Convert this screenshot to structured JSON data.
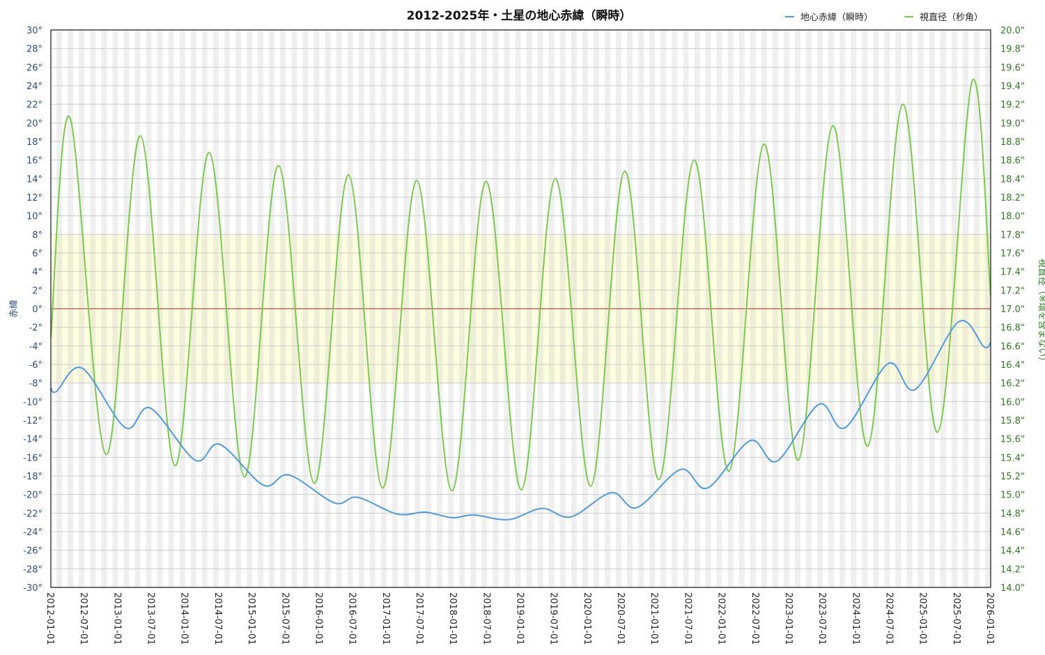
{
  "chart_data": {
    "type": "line",
    "title": "2012-2025年・土星の地心赤緯（瞬時）",
    "xlabel": "",
    "ylabel": "赤緯",
    "y2label": "視直径（※環を含まない）",
    "xlim": [
      "2012-01-01",
      "2026-01-01"
    ],
    "ylim": [
      -30,
      30
    ],
    "y2lim": [
      14.0,
      20.0
    ],
    "grid": true,
    "legend_position": "top-right",
    "highlight_band": {
      "from": -8,
      "to": 8,
      "color": "#fdfde0"
    },
    "zero_line_color": "#9b2c1a",
    "x_tick_labels": [
      "2012-01-01",
      "2012-07-01",
      "2013-01-01",
      "2013-07-01",
      "2014-01-01",
      "2014-07-01",
      "2015-01-01",
      "2015-07-01",
      "2016-01-01",
      "2016-07-01",
      "2017-01-01",
      "2017-07-01",
      "2018-01-01",
      "2018-07-01",
      "2019-01-01",
      "2019-07-01",
      "2020-01-01",
      "2020-07-01",
      "2021-01-01",
      "2021-07-01",
      "2022-01-01",
      "2022-07-01",
      "2023-01-01",
      "2023-07-01",
      "2024-01-01",
      "2024-07-01",
      "2025-01-01",
      "2025-07-01",
      "2026-01-01"
    ],
    "y_tick_labels": [
      "30°",
      "28°",
      "26°",
      "24°",
      "22°",
      "20°",
      "18°",
      "16°",
      "14°",
      "12°",
      "10°",
      "8°",
      "6°",
      "4°",
      "2°",
      "0°",
      "-2°",
      "-4°",
      "-6°",
      "-8°",
      "-10°",
      "-12°",
      "-14°",
      "-16°",
      "-18°",
      "-20°",
      "-22°",
      "-24°",
      "-26°",
      "-28°",
      "-30°"
    ],
    "y2_tick_labels": [
      "20.0\"",
      "19.8\"",
      "19.6\"",
      "19.4\"",
      "19.2\"",
      "19.0\"",
      "18.8\"",
      "18.6\"",
      "18.4\"",
      "18.2\"",
      "18.0\"",
      "17.8\"",
      "17.6\"",
      "17.4\"",
      "17.2\"",
      "17.0\"",
      "16.8\"",
      "16.6\"",
      "16.4\"",
      "16.2\"",
      "16.0\"",
      "15.8\"",
      "15.6\"",
      "15.4\"",
      "15.2\"",
      "15.0\"",
      "14.8\"",
      "14.6\"",
      "14.4\"",
      "14.2\"",
      "14.0\""
    ],
    "series": [
      {
        "name": "地心赤緯（瞬時）",
        "axis": "left",
        "color": "#4a9be0",
        "unit": "deg",
        "points_month_value": [
          [
            0,
            -8.5
          ],
          [
            1,
            -8.9
          ],
          [
            5.6,
            -6.4
          ],
          [
            13.3,
            -12.8
          ],
          [
            17.8,
            -10.7
          ],
          [
            25.8,
            -16.3
          ],
          [
            30.2,
            -14.6
          ],
          [
            38,
            -19.0
          ],
          [
            42.6,
            -17.9
          ],
          [
            50.7,
            -20.9
          ],
          [
            54.8,
            -20.3
          ],
          [
            61.9,
            -22.1
          ],
          [
            66.9,
            -21.9
          ],
          [
            71.8,
            -22.5
          ],
          [
            75.6,
            -22.2
          ],
          [
            81.8,
            -22.7
          ],
          [
            87.8,
            -21.5
          ],
          [
            93,
            -22.4
          ],
          [
            100.2,
            -19.8
          ],
          [
            104.8,
            -21.4
          ],
          [
            112.6,
            -17.3
          ],
          [
            117.4,
            -19.3
          ],
          [
            125,
            -14.2
          ],
          [
            129.8,
            -16.4
          ],
          [
            137.3,
            -10.3
          ],
          [
            142,
            -12.8
          ],
          [
            149.7,
            -5.9
          ],
          [
            154.5,
            -8.7
          ],
          [
            162.3,
            -1.4
          ],
          [
            166.8,
            -4.1
          ],
          [
            168,
            -3.6
          ]
        ]
      },
      {
        "name": "視直径（秒角）",
        "axis": "right",
        "color": "#76cc48",
        "unit": "arcsec",
        "points_month_value": [
          [
            0,
            16.69
          ],
          [
            3.4,
            19.06
          ],
          [
            9.9,
            15.43
          ],
          [
            16,
            18.86
          ],
          [
            22.2,
            15.31
          ],
          [
            28.3,
            18.68
          ],
          [
            34.6,
            15.19
          ],
          [
            40.7,
            18.54
          ],
          [
            47.1,
            15.12
          ],
          [
            53.2,
            18.44
          ],
          [
            59.3,
            15.07
          ],
          [
            65.4,
            18.38
          ],
          [
            71.7,
            15.04
          ],
          [
            77.8,
            18.37
          ],
          [
            84.1,
            15.05
          ],
          [
            90.2,
            18.4
          ],
          [
            96.5,
            15.09
          ],
          [
            102.6,
            18.48
          ],
          [
            108.7,
            15.16
          ],
          [
            115,
            18.6
          ],
          [
            121.2,
            15.25
          ],
          [
            127.5,
            18.77
          ],
          [
            133.6,
            15.37
          ],
          [
            139.8,
            18.97
          ],
          [
            146,
            15.52
          ],
          [
            152.3,
            19.2
          ],
          [
            158.5,
            15.67
          ],
          [
            164.7,
            19.45
          ],
          [
            168,
            17.14
          ]
        ]
      }
    ]
  },
  "legend": [
    {
      "label": "地心赤緯（瞬時）",
      "color": "#4a9be0"
    },
    {
      "label": "視直径（秒角）",
      "color": "#76cc48"
    }
  ]
}
